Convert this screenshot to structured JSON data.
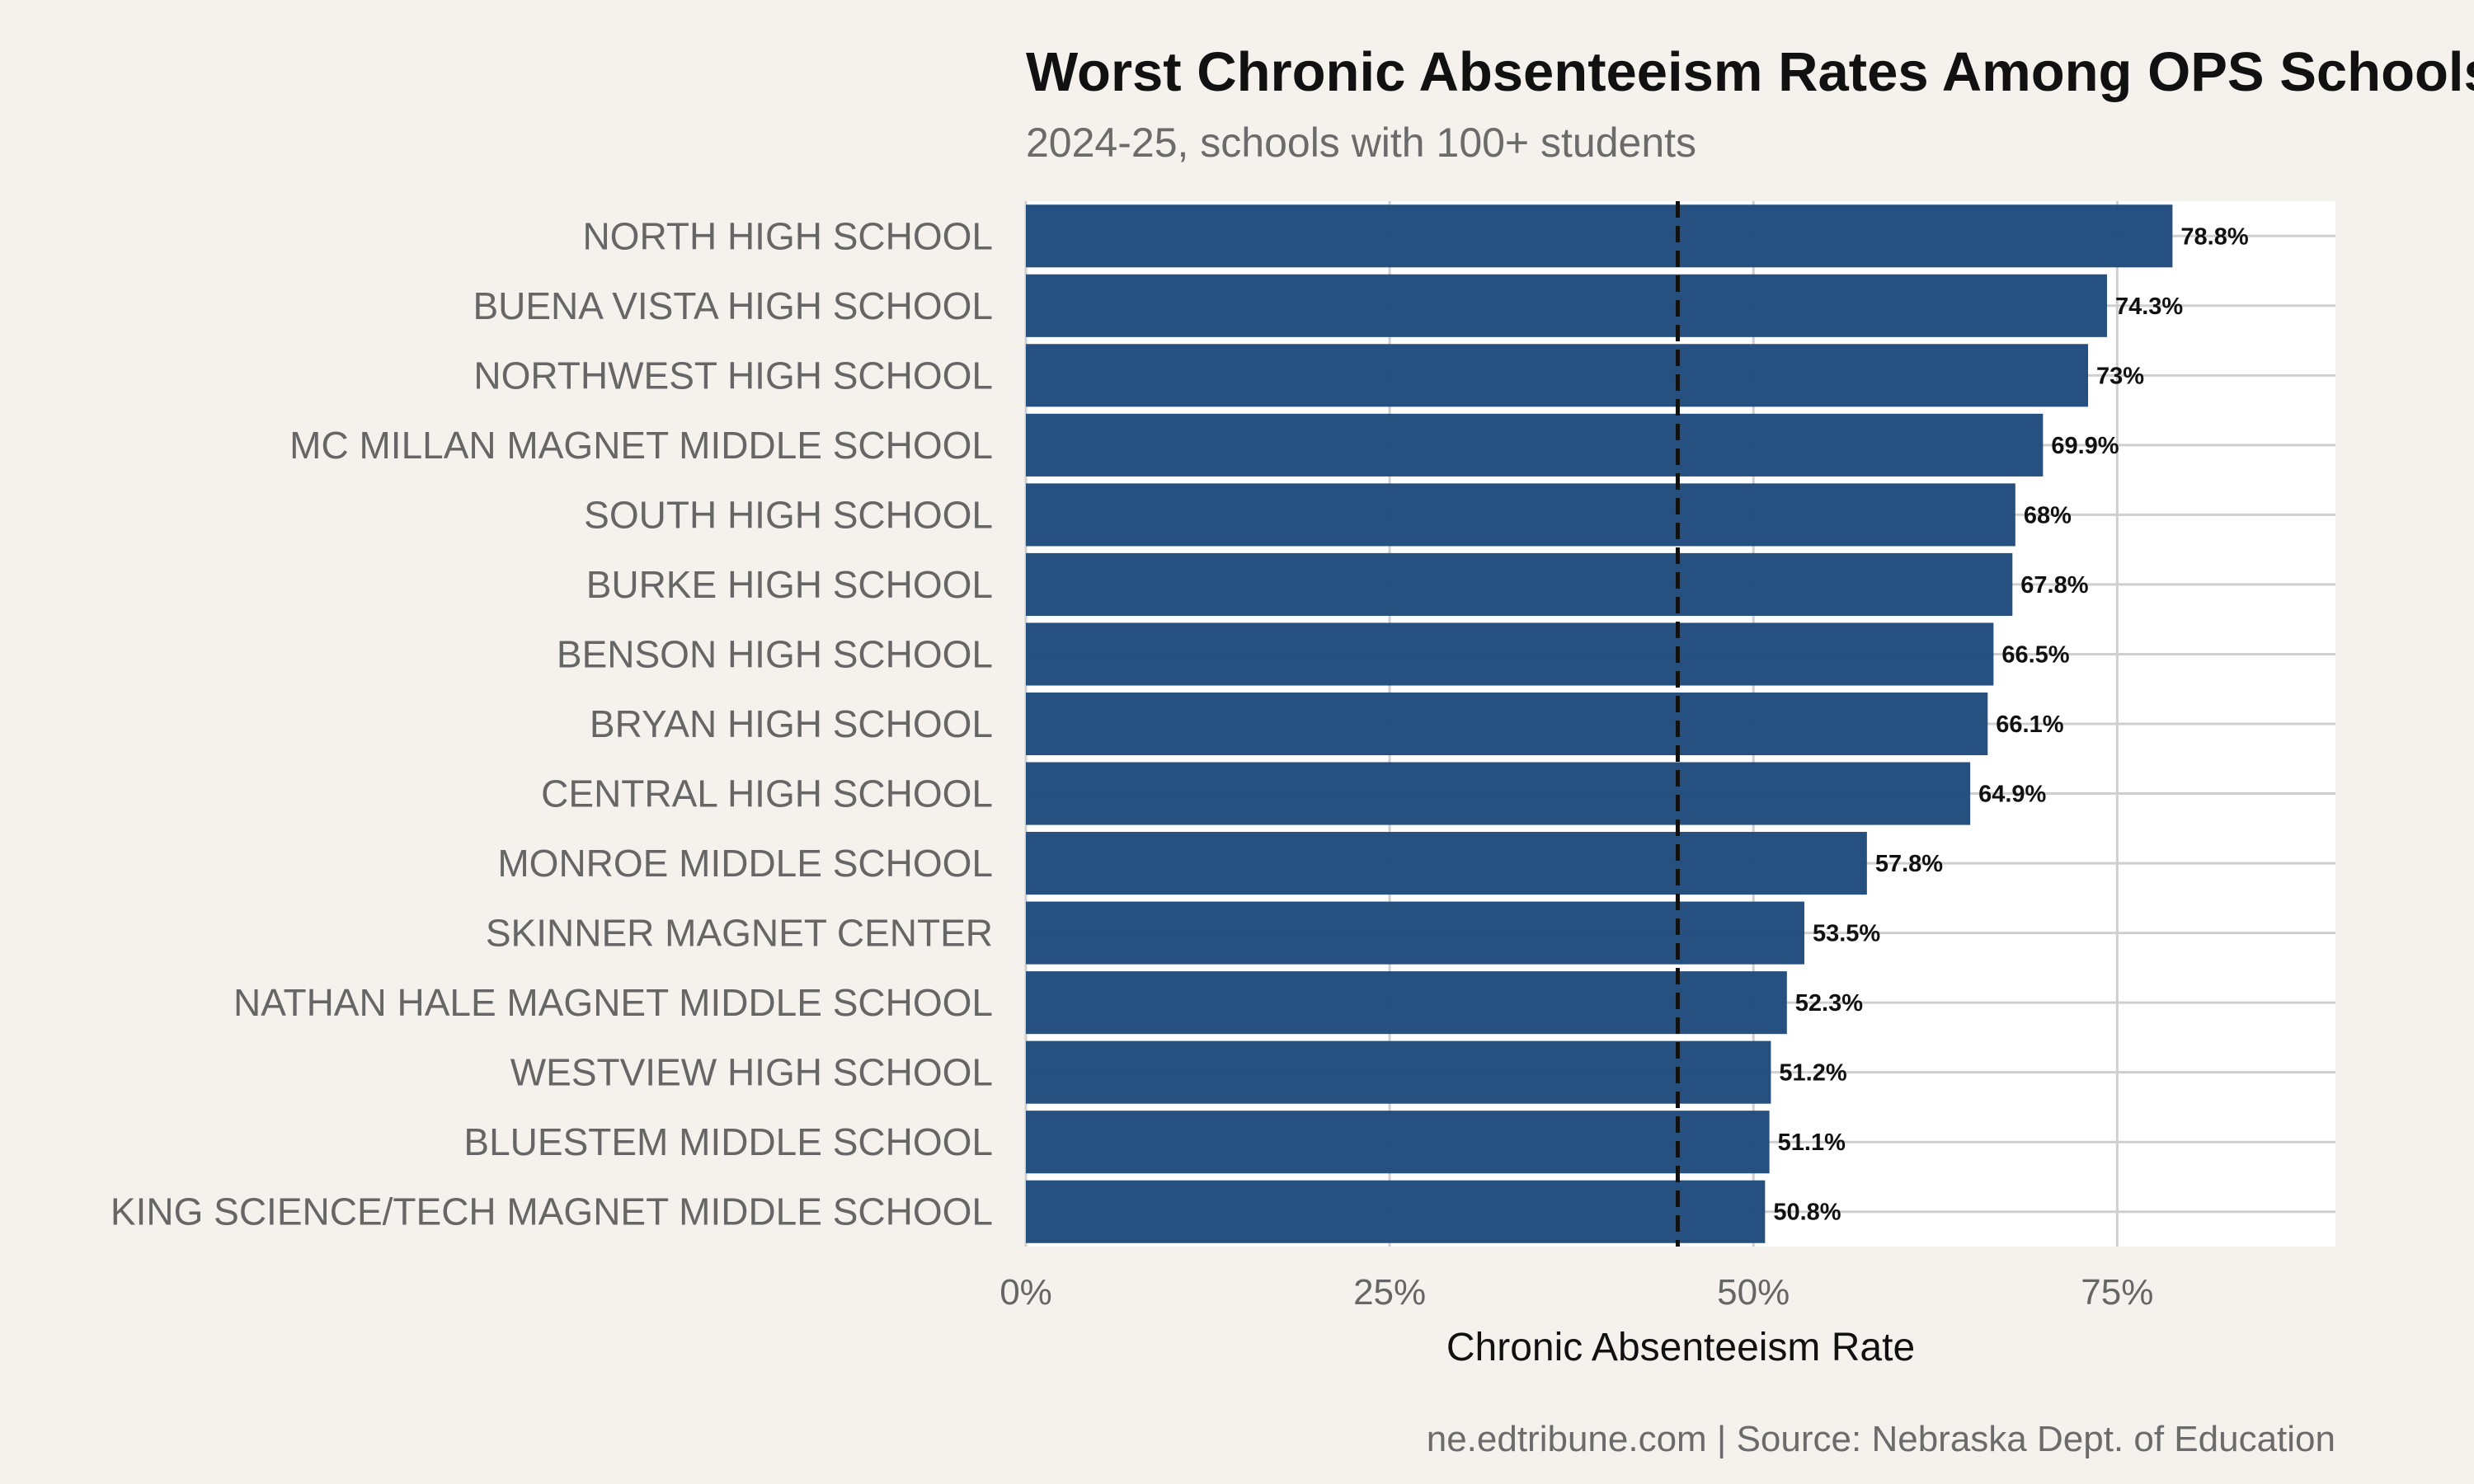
{
  "chart_data": {
    "type": "bar",
    "orientation": "horizontal",
    "title": "Worst Chronic Absenteeism Rates Among OPS Schools",
    "subtitle": "2024-25, schools with 100+ students",
    "xlabel": "Chronic Absenteeism Rate",
    "ylabel": "",
    "xlim": [
      0,
      90
    ],
    "x_ticks": [
      0,
      25,
      50,
      75
    ],
    "x_tick_labels": [
      "0%",
      "25%",
      "50%",
      "75%"
    ],
    "grid": true,
    "reference_line": 44.8,
    "bar_color": "#1f4a7b",
    "categories": [
      "NORTH HIGH SCHOOL",
      "BUENA VISTA HIGH SCHOOL",
      "NORTHWEST HIGH SCHOOL",
      "MC MILLAN MAGNET MIDDLE SCHOOL",
      "SOUTH HIGH SCHOOL",
      "BURKE HIGH SCHOOL",
      "BENSON HIGH SCHOOL",
      "BRYAN HIGH SCHOOL",
      "CENTRAL HIGH SCHOOL",
      "MONROE MIDDLE SCHOOL",
      "SKINNER MAGNET CENTER",
      "NATHAN HALE MAGNET MIDDLE SCHOOL",
      "WESTVIEW HIGH SCHOOL",
      "BLUESTEM MIDDLE SCHOOL",
      "KING SCIENCE/TECH MAGNET MIDDLE SCHOOL"
    ],
    "values": [
      78.8,
      74.3,
      73,
      69.9,
      68,
      67.8,
      66.5,
      66.1,
      64.9,
      57.8,
      53.5,
      52.3,
      51.2,
      51.1,
      50.8
    ],
    "value_labels": [
      "78.8%",
      "74.3%",
      "73%",
      "69.9%",
      "68%",
      "67.8%",
      "66.5%",
      "66.1%",
      "64.9%",
      "57.8%",
      "53.5%",
      "52.3%",
      "51.2%",
      "51.1%",
      "50.8%"
    ],
    "caption": "ne.edtribune.com | Source: Nebraska Dept. of Education"
  }
}
